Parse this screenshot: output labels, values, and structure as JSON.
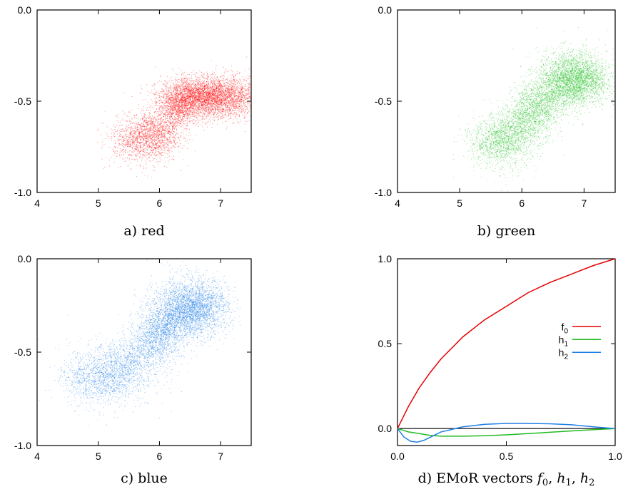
{
  "chart_data": [
    {
      "type": "scatter",
      "caption": "a) red",
      "color": "#ff0000",
      "xlim": [
        4,
        7.5
      ],
      "ylim": [
        -1.0,
        0.0
      ],
      "x_ticks": [
        4,
        5,
        6,
        7
      ],
      "x_tick_labels": [
        "4",
        "5",
        "6",
        "7"
      ],
      "y_ticks": [
        0.0,
        -0.5,
        -1.0
      ],
      "y_tick_labels": [
        "0.0",
        "-0.5",
        "-1.0"
      ],
      "centerline": [
        [
          5.3,
          -0.72
        ],
        [
          5.9,
          -0.68
        ],
        [
          6.3,
          -0.55
        ],
        [
          6.7,
          -0.48
        ],
        [
          7.1,
          -0.47
        ],
        [
          7.45,
          -0.5
        ]
      ],
      "blobs": [
        {
          "x": 6.75,
          "y": -0.47,
          "sx": 0.35,
          "sy": 0.05,
          "n": 2400
        },
        {
          "x": 6.3,
          "y": -0.5,
          "sx": 0.15,
          "sy": 0.06,
          "n": 700
        },
        {
          "x": 5.85,
          "y": -0.7,
          "sx": 0.22,
          "sy": 0.07,
          "n": 900
        }
      ]
    },
    {
      "type": "scatter",
      "caption": "b) green",
      "color": "#22c222",
      "xlim": [
        4,
        7.5
      ],
      "ylim": [
        -1.0,
        0.0
      ],
      "x_ticks": [
        4,
        5,
        6,
        7
      ],
      "x_tick_labels": [
        "4",
        "5",
        "6",
        "7"
      ],
      "y_ticks": [
        0.0,
        -0.5,
        -1.0
      ],
      "y_tick_labels": [
        "0.0",
        "-0.5",
        "-1.0"
      ],
      "centerline": [
        [
          5.3,
          -0.75
        ],
        [
          5.8,
          -0.68
        ],
        [
          6.2,
          -0.55
        ],
        [
          6.6,
          -0.42
        ],
        [
          6.9,
          -0.36
        ],
        [
          7.2,
          -0.38
        ]
      ],
      "blobs": [
        {
          "x": 6.8,
          "y": -0.38,
          "sx": 0.28,
          "sy": 0.08,
          "n": 2200
        },
        {
          "x": 6.2,
          "y": -0.55,
          "sx": 0.18,
          "sy": 0.08,
          "n": 800
        },
        {
          "x": 5.75,
          "y": -0.72,
          "sx": 0.25,
          "sy": 0.08,
          "n": 900
        }
      ]
    },
    {
      "type": "scatter",
      "caption": "c) blue",
      "color": "#1e7fe6",
      "xlim": [
        4,
        7.5
      ],
      "ylim": [
        -1.0,
        0.0
      ],
      "x_ticks": [
        4,
        5,
        6,
        7
      ],
      "x_tick_labels": [
        "4",
        "5",
        "6",
        "7"
      ],
      "y_ticks": [
        0.0,
        -0.5,
        -1.0
      ],
      "y_tick_labels": [
        "0.0",
        "-0.5",
        "-1.0"
      ],
      "centerline": [
        [
          4.6,
          -0.65
        ],
        [
          5.2,
          -0.62
        ],
        [
          5.7,
          -0.5
        ],
        [
          6.1,
          -0.35
        ],
        [
          6.5,
          -0.27
        ],
        [
          6.9,
          -0.25
        ]
      ],
      "blobs": [
        {
          "x": 6.5,
          "y": -0.26,
          "sx": 0.3,
          "sy": 0.08,
          "n": 2300
        },
        {
          "x": 6.0,
          "y": -0.4,
          "sx": 0.2,
          "sy": 0.09,
          "n": 900
        },
        {
          "x": 5.2,
          "y": -0.62,
          "sx": 0.35,
          "sy": 0.09,
          "n": 1000
        }
      ]
    },
    {
      "type": "line",
      "caption_prefix": "d) EMoR vectors ",
      "caption_vars": [
        "f",
        "0",
        "h",
        "1",
        "h",
        "2"
      ],
      "xlim": [
        0.0,
        1.0
      ],
      "ylim": [
        -0.1,
        1.0
      ],
      "x_ticks": [
        0.0,
        0.5,
        1.0
      ],
      "x_tick_labels": [
        "0.0",
        "0.5",
        "1.0"
      ],
      "y_ticks": [
        0.0,
        0.5,
        1.0
      ],
      "y_tick_labels": [
        "0.0",
        "0.5",
        "1.0"
      ],
      "zero_line": true,
      "legend_position": "right",
      "series": [
        {
          "name": "f",
          "sub": "0",
          "color": "#e60000",
          "x": [
            0.0,
            0.05,
            0.1,
            0.15,
            0.2,
            0.3,
            0.4,
            0.5,
            0.6,
            0.7,
            0.8,
            0.9,
            1.0
          ],
          "values": [
            0.0,
            0.13,
            0.24,
            0.33,
            0.41,
            0.54,
            0.64,
            0.72,
            0.8,
            0.86,
            0.91,
            0.96,
            1.0
          ]
        },
        {
          "name": "h",
          "sub": "1",
          "color": "#22b922",
          "x": [
            0.0,
            0.05,
            0.1,
            0.15,
            0.2,
            0.3,
            0.4,
            0.5,
            0.6,
            0.7,
            0.8,
            0.9,
            1.0
          ],
          "values": [
            0.0,
            -0.02,
            -0.03,
            -0.04,
            -0.045,
            -0.045,
            -0.042,
            -0.037,
            -0.03,
            -0.022,
            -0.014,
            -0.007,
            0.0
          ]
        },
        {
          "name": "h",
          "sub": "2",
          "color": "#1e7fe6",
          "x": [
            0.0,
            0.03,
            0.06,
            0.09,
            0.12,
            0.16,
            0.2,
            0.3,
            0.4,
            0.5,
            0.6,
            0.7,
            0.8,
            0.9,
            1.0
          ],
          "values": [
            0.0,
            -0.05,
            -0.075,
            -0.08,
            -0.07,
            -0.045,
            -0.02,
            0.01,
            0.025,
            0.03,
            0.03,
            0.028,
            0.022,
            0.01,
            0.0
          ]
        }
      ]
    }
  ]
}
